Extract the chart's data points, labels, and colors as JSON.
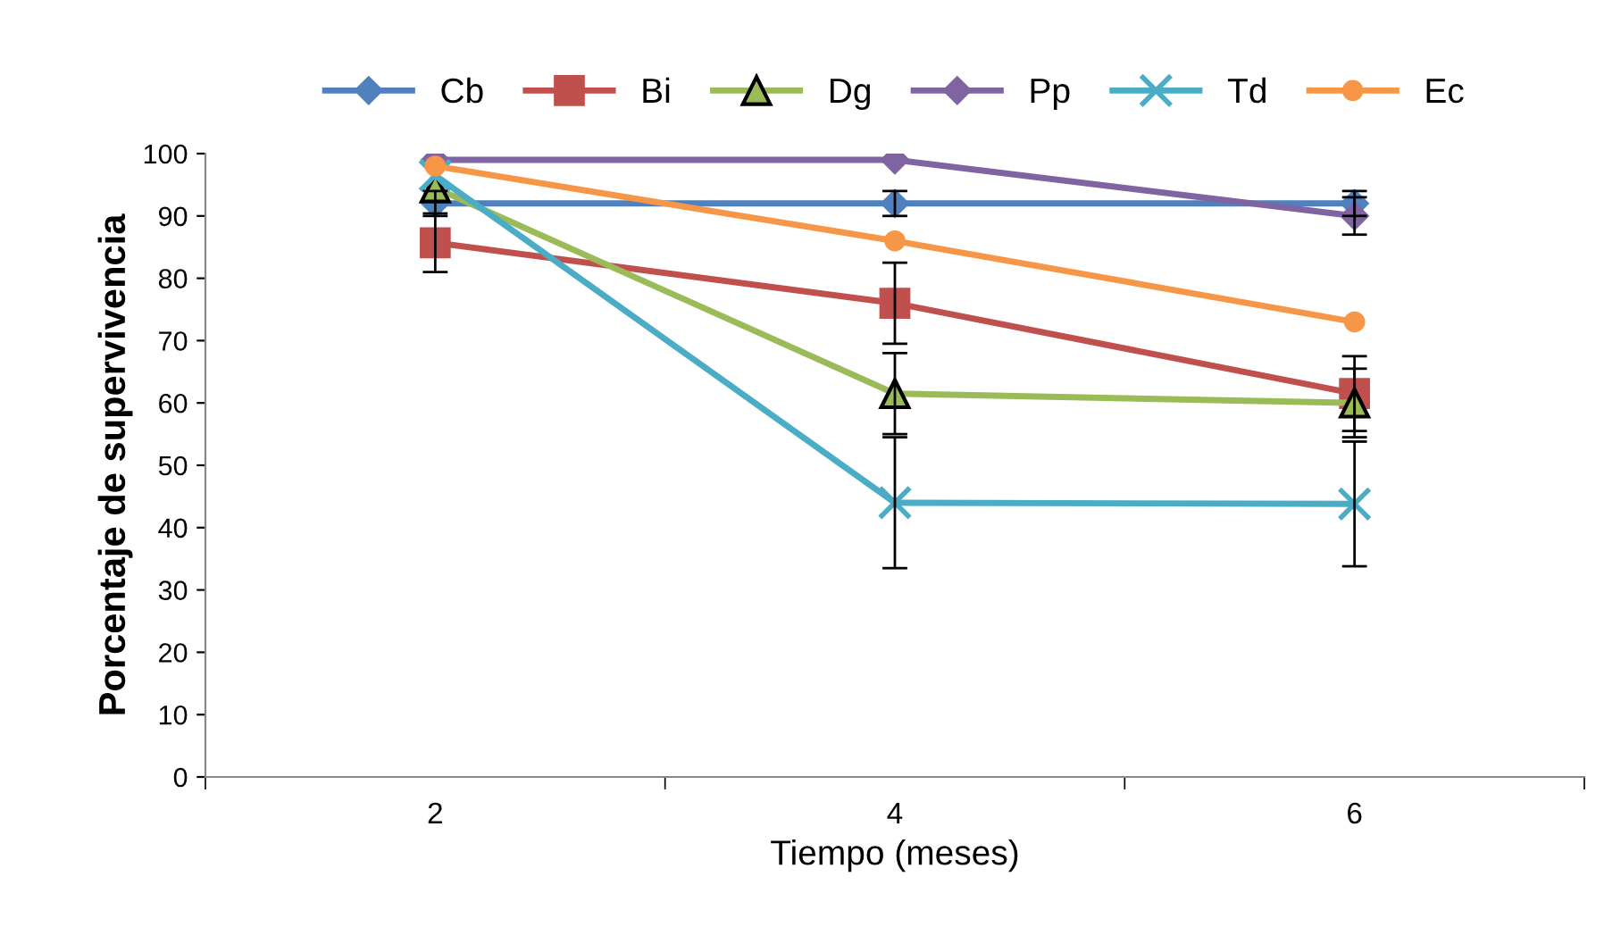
{
  "chart_data": {
    "type": "line",
    "xlabel": "Tiempo (meses)",
    "ylabel": "Porcentaje de supervivencia",
    "categories": [
      "2",
      "4",
      "6"
    ],
    "series": [
      {
        "name": "Cb",
        "color": "#4f81bd",
        "marker": "diamond",
        "values": [
          92,
          92,
          92
        ],
        "errors": [
          2,
          2,
          2
        ]
      },
      {
        "name": "Bi",
        "color": "#c0504d",
        "marker": "square",
        "values": [
          85.7,
          76,
          61.5
        ],
        "errors": [
          4.7,
          6.5,
          6
        ]
      },
      {
        "name": "Dg",
        "color": "#9bbb59",
        "marker": "triangle",
        "values": [
          94.5,
          61.5,
          60
        ],
        "errors": [
          null,
          6.5,
          5.5
        ]
      },
      {
        "name": "Pp",
        "color": "#8064a2",
        "marker": "diamond",
        "values": [
          99,
          99,
          90
        ],
        "errors": [
          null,
          null,
          3
        ]
      },
      {
        "name": "Td",
        "color": "#4bacc6",
        "marker": "cross",
        "values": [
          96.5,
          44,
          43.8
        ],
        "errors": [
          null,
          10.5,
          10
        ]
      },
      {
        "name": "Ec",
        "color": "#f79646",
        "marker": "circle",
        "values": [
          98,
          86,
          73
        ]
      }
    ],
    "ylim": [
      0,
      100
    ],
    "yticks": [
      0,
      10,
      20,
      30,
      40,
      50,
      60,
      70,
      80,
      90,
      100
    ],
    "grid": false,
    "legend": "top",
    "line_style": "solid"
  }
}
